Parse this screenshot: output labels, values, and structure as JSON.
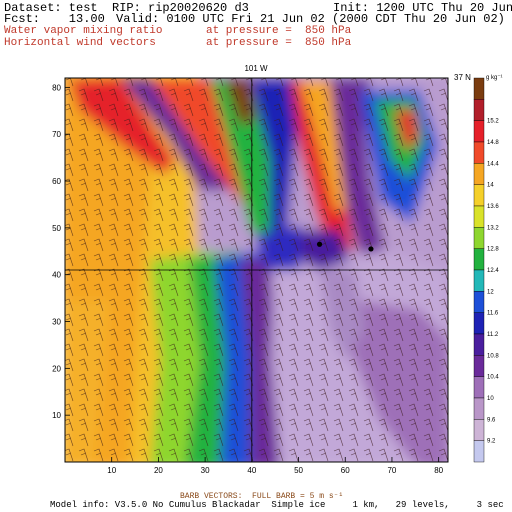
{
  "header": {
    "dataset": "Dataset: test  RIP: rip20020620 d3",
    "init": "Init: 1200 UTC Thu 20 Jun 02",
    "fcst": "Fcst:    13.00",
    "valid": "Valid: 0100 UTC Fri 21 Jun 02 (2000 CDT Thu 20 Jun 02)",
    "field1": "Water vapor mixing ratio",
    "field1_pressure": "at pressure =  850 hPa",
    "field2": "Horizontal wind vectors",
    "field2_pressure": "at pressure =  850 hPa"
  },
  "map": {
    "top_label": "101 W",
    "right_label": "37 N",
    "x_ticks": [
      "10",
      "20",
      "30",
      "40",
      "50",
      "60",
      "70",
      "80"
    ],
    "y_ticks": [
      "10",
      "20",
      "30",
      "40",
      "50",
      "60",
      "70",
      "80"
    ],
    "x_range": [
      0,
      82
    ],
    "y_range": [
      0,
      82
    ],
    "lines": {
      "vertical_x": 40,
      "horizontal_y": 41
    },
    "stations": [
      {
        "x": 54.5,
        "y": 46.5
      },
      {
        "x": 65.5,
        "y": 45.5
      }
    ]
  },
  "colorbar": {
    "units": "g kg⁻¹",
    "levels": [
      "15.2",
      "14.8",
      "14.4",
      "14",
      "13.6",
      "13.2",
      "12.8",
      "12.4",
      "12",
      "11.6",
      "11.2",
      "10.8",
      "10.4",
      "10",
      "9.6",
      "9.2"
    ],
    "colors": [
      "#7a3c0f",
      "#b11e2a",
      "#e5202a",
      "#f04a2a",
      "#f5a623",
      "#f5d02a",
      "#d9e22a",
      "#8ed62f",
      "#22b23f",
      "#23b8b8",
      "#1d4fd8",
      "#1e22b5",
      "#4a1e9e",
      "#6a2a9a",
      "#9e6fb8",
      "#b996c8",
      "#cdb4d6",
      "#c4c8ee"
    ]
  },
  "footer": {
    "barb_note": "BARB VECTORS:  FULL BARB = 5 m s⁻¹",
    "model_info": "Model info: V3.5.0 No Cumulus Blackadar  Simple ice     1 km,   29 levels,     3 sec"
  }
}
